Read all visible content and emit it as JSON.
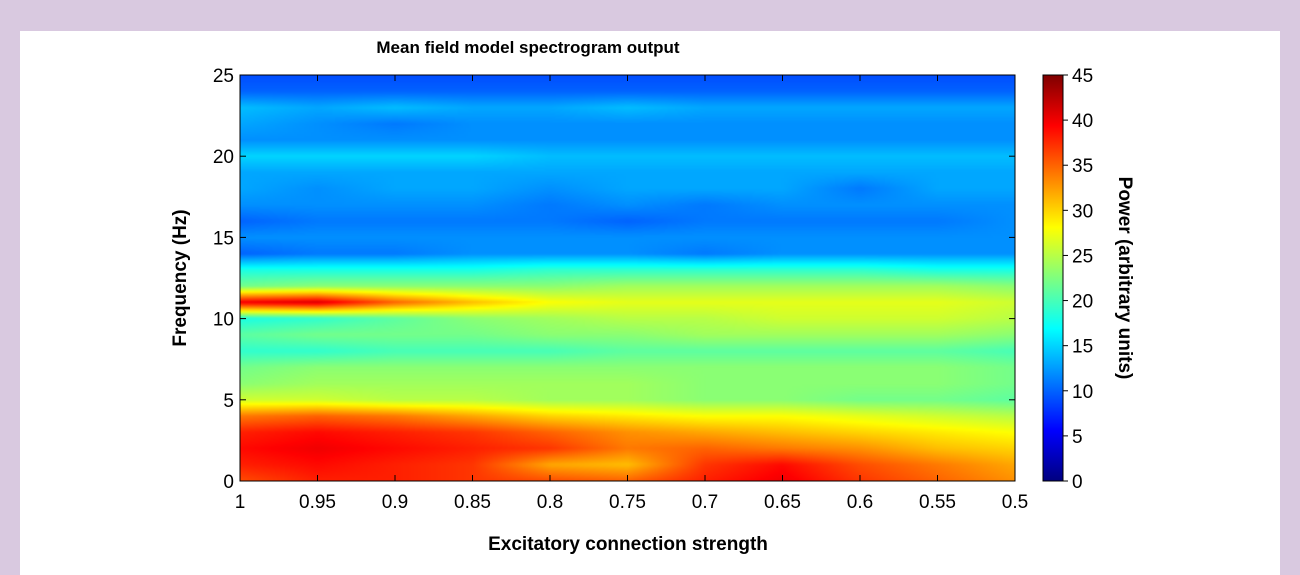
{
  "colors": {
    "frame_background": "#d9c9e0",
    "panel_background": "#ffffff",
    "colormap": [
      "#00007f",
      "#0000ff",
      "#007fff",
      "#00ffff",
      "#7fff7f",
      "#ffff00",
      "#ff7f00",
      "#ff0000",
      "#7f0000"
    ]
  },
  "chart_data": {
    "type": "heatmap",
    "title": "Mean field model spectrogram output",
    "xlabel": "Excitatory connection strength",
    "ylabel": "Frequency (Hz)",
    "colorbar_label": "Power (arbitrary units)",
    "colormap": "jet",
    "x_reversed": true,
    "xlim": [
      1,
      0.5
    ],
    "ylim": [
      0,
      25
    ],
    "clim": [
      0,
      45
    ],
    "xticks": [
      "1",
      "0.95",
      "0.9",
      "0.85",
      "0.8",
      "0.75",
      "0.7",
      "0.65",
      "0.6",
      "0.55",
      "0.5"
    ],
    "yticks": [
      "0",
      "5",
      "10",
      "15",
      "20",
      "25"
    ],
    "colorbar_ticks": [
      "0",
      "5",
      "10",
      "15",
      "20",
      "25",
      "30",
      "35",
      "40",
      "45"
    ],
    "x": [
      1.0,
      0.95,
      0.9,
      0.85,
      0.8,
      0.75,
      0.7,
      0.65,
      0.6,
      0.55,
      0.5
    ],
    "y": [
      0,
      1,
      2,
      3,
      4,
      5,
      6,
      7,
      8,
      9,
      10,
      11,
      12,
      13,
      14,
      15,
      16,
      17,
      18,
      19,
      20,
      21,
      22,
      23,
      24,
      25
    ],
    "z": [
      [
        36,
        38,
        38,
        37,
        36,
        35,
        38,
        40,
        37,
        35,
        33
      ],
      [
        38,
        39,
        38,
        37,
        32,
        31,
        37,
        39,
        36,
        34,
        32
      ],
      [
        39,
        40,
        39,
        38,
        37,
        34,
        35,
        34,
        33,
        31,
        30
      ],
      [
        38,
        39,
        38,
        37,
        35,
        33,
        32,
        31,
        30,
        29,
        28
      ],
      [
        34,
        35,
        34,
        32,
        30,
        29,
        28,
        28,
        27,
        26,
        25
      ],
      [
        26,
        26,
        25,
        25,
        24,
        24,
        23,
        23,
        22,
        22,
        21
      ],
      [
        23,
        24,
        24,
        24,
        24,
        24,
        23,
        23,
        23,
        23,
        22
      ],
      [
        22,
        23,
        23,
        23,
        23,
        23,
        23,
        23,
        23,
        23,
        22
      ],
      [
        19,
        19,
        20,
        20,
        20,
        21,
        21,
        21,
        21,
        21,
        20
      ],
      [
        21,
        22,
        22,
        22,
        23,
        23,
        24,
        24,
        24,
        24,
        23
      ],
      [
        18,
        19,
        21,
        23,
        24,
        25,
        25,
        26,
        26,
        26,
        25
      ],
      [
        40,
        41,
        35,
        31,
        28,
        27,
        27,
        27,
        27,
        27,
        26
      ],
      [
        22,
        23,
        23,
        23,
        23,
        24,
        24,
        24,
        24,
        24,
        23
      ],
      [
        18,
        18,
        18,
        18,
        19,
        19,
        19,
        19,
        19,
        18,
        18
      ],
      [
        10,
        11,
        11,
        12,
        12,
        12,
        11,
        12,
        12,
        12,
        12
      ],
      [
        12,
        12,
        12,
        12,
        12,
        12,
        12,
        12,
        12,
        12,
        12
      ],
      [
        10,
        11,
        11,
        11,
        11,
        10,
        11,
        11,
        11,
        11,
        12
      ],
      [
        12,
        12,
        12,
        12,
        11,
        12,
        11,
        12,
        12,
        12,
        12
      ],
      [
        13,
        12,
        13,
        13,
        12,
        13,
        13,
        13,
        11,
        13,
        13
      ],
      [
        13,
        13,
        13,
        13,
        13,
        13,
        13,
        13,
        13,
        13,
        13
      ],
      [
        15,
        15,
        15,
        15,
        14,
        14,
        14,
        14,
        14,
        14,
        14
      ],
      [
        12,
        12,
        12,
        12,
        12,
        12,
        12,
        12,
        12,
        12,
        12
      ],
      [
        13,
        12,
        11,
        12,
        12,
        12,
        12,
        12,
        12,
        12,
        12
      ],
      [
        14,
        13,
        14,
        13,
        13,
        14,
        13,
        13,
        13,
        13,
        13
      ],
      [
        10,
        10,
        10,
        10,
        10,
        10,
        10,
        10,
        10,
        10,
        10
      ],
      [
        9,
        9,
        9,
        9,
        9,
        9,
        9,
        9,
        9,
        9,
        9
      ]
    ]
  }
}
